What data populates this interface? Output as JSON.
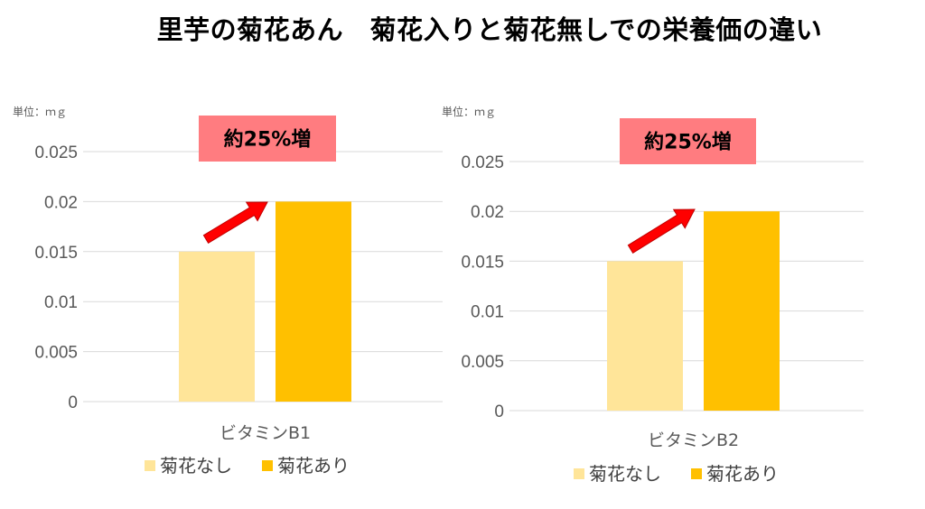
{
  "title": "里芋の菊花あん　菊花入りと菊花無しでの栄養価の違い",
  "colors": {
    "without": "#FFE599",
    "with": "#FFC000",
    "callout_bg": "#FF7C80",
    "arrow": "#FF0000",
    "grid": "#D9D9D9"
  },
  "chart_data": [
    {
      "type": "bar",
      "unit_label": "単位：ｍｇ",
      "categories": [
        "ビタミンB1"
      ],
      "series": [
        {
          "name": "菊花なし",
          "values": [
            0.015
          ]
        },
        {
          "name": "菊花あり",
          "values": [
            0.02
          ]
        }
      ],
      "ylim": [
        0,
        0.025
      ],
      "yticks": [
        "0",
        "0.005",
        "0.01",
        "0.015",
        "0.02",
        "0.025"
      ],
      "annotation": "約25%増",
      "grid": true,
      "legend": "bottom"
    },
    {
      "type": "bar",
      "unit_label": "単位：ｍｇ",
      "categories": [
        "ビタミンB2"
      ],
      "series": [
        {
          "name": "菊花なし",
          "values": [
            0.015
          ]
        },
        {
          "name": "菊花あり",
          "values": [
            0.02
          ]
        }
      ],
      "ylim": [
        0,
        0.025
      ],
      "yticks": [
        "0",
        "0.005",
        "0.01",
        "0.015",
        "0.02",
        "0.025"
      ],
      "annotation": "約25%増",
      "grid": true,
      "legend": "bottom"
    }
  ]
}
